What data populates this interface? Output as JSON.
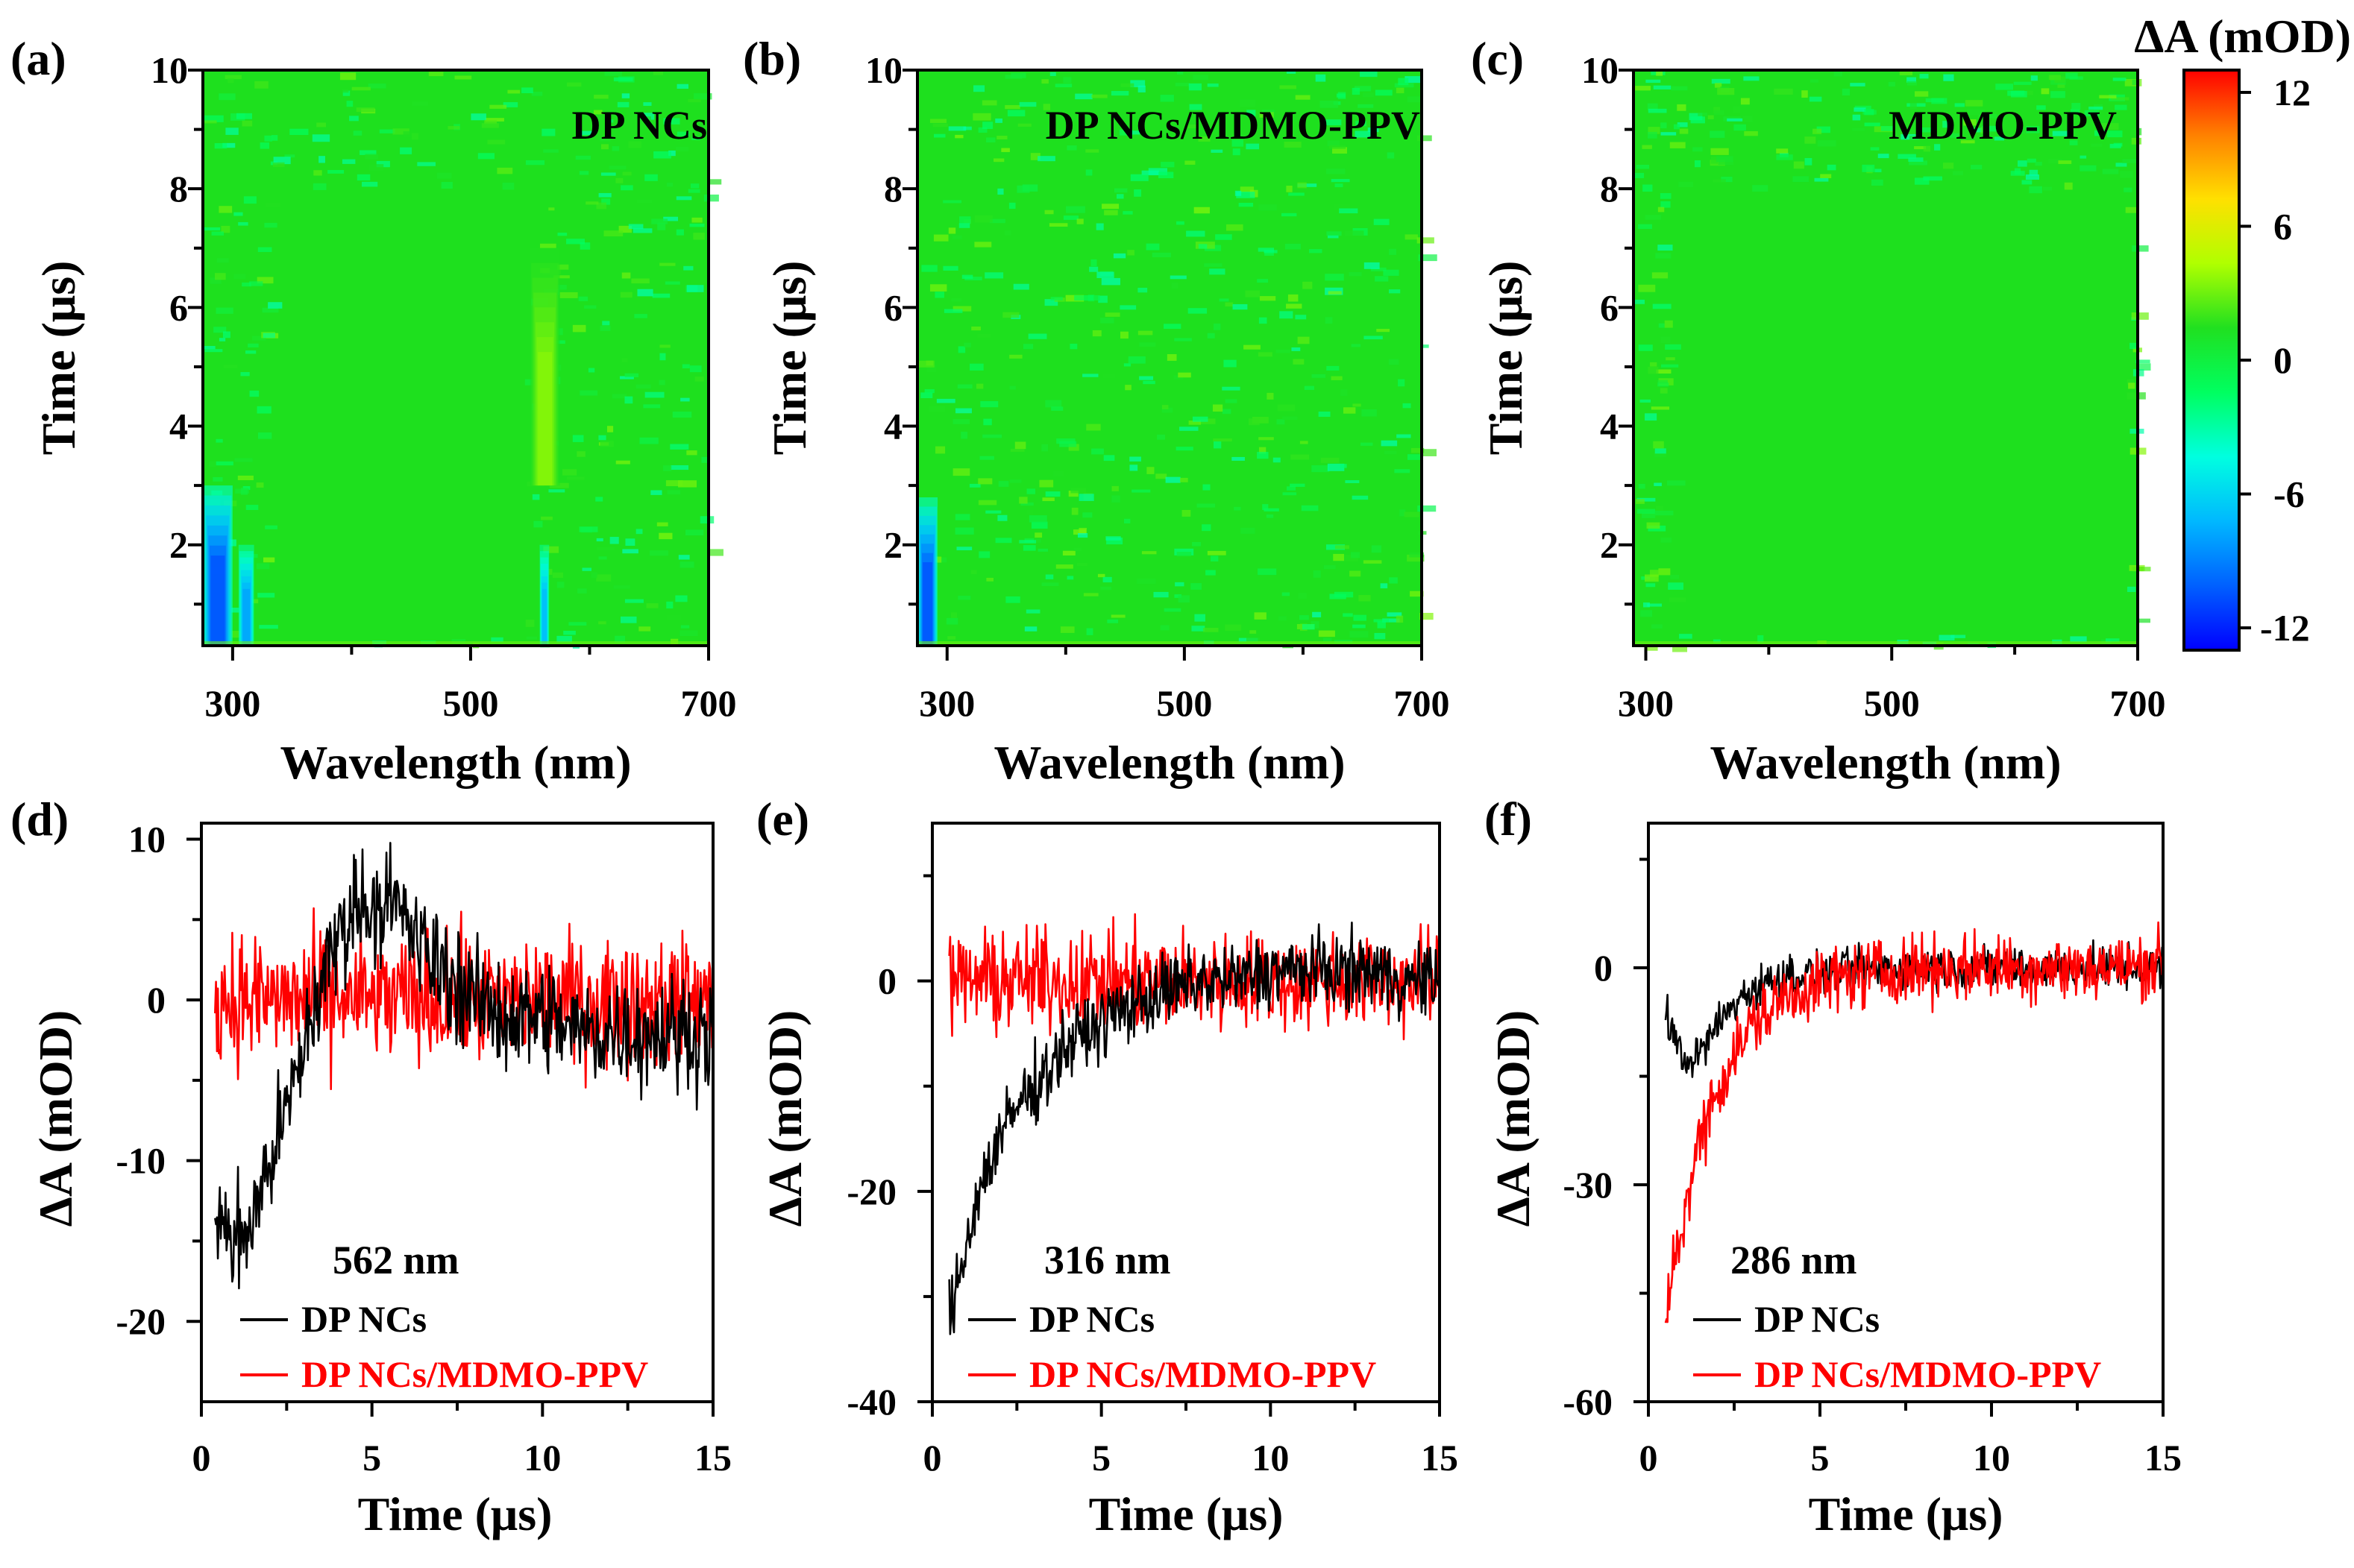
{
  "figure": {
    "description_labels": [
      "(a)",
      "(b)",
      "(c)",
      "(d)",
      "(e)",
      "(f)"
    ]
  },
  "colors": {
    "black_series": "#000000",
    "red_series": "#ff0000",
    "map_background": "#1ee01e"
  },
  "colorbar": {
    "title": "ΔA (mOD)",
    "min": -13,
    "max": 13,
    "ticks": [
      12,
      6,
      0,
      -6,
      -12
    ],
    "tick_labels": [
      "12",
      "6",
      "0",
      "-6",
      "-12"
    ],
    "colormap": [
      "#0000ff",
      "#0060ff",
      "#00b8ff",
      "#00ffe0",
      "#00ff60",
      "#20e020",
      "#b0ff00",
      "#ffe000",
      "#ff8000",
      "#ff0000"
    ]
  },
  "chart_data": [
    {
      "panel": "(a)",
      "type": "heatmap",
      "title": "DP NCs",
      "xlabel": "Wavelength (nm)",
      "ylabel": "Time (μs)",
      "xlim": [
        275,
        700
      ],
      "ylim": [
        0.3,
        10
      ],
      "xticks": [
        300,
        500,
        700
      ],
      "xtick_labels": [
        "300",
        "500",
        "700"
      ],
      "yticks": [
        2,
        4,
        6,
        8,
        10
      ],
      "ytick_labels": [
        "2",
        "4",
        "6",
        "8",
        "10"
      ],
      "features": [
        {
          "kind": "negative-band",
          "wavelength": [
            275,
            300
          ],
          "time": [
            0.3,
            3.0
          ],
          "dA": -12
        },
        {
          "kind": "negative-band",
          "wavelength": [
            305,
            318
          ],
          "time": [
            0.3,
            2.0
          ],
          "dA": -9
        },
        {
          "kind": "negative-band",
          "wavelength": [
            558,
            566
          ],
          "time": [
            0.3,
            2.0
          ],
          "dA": -8
        },
        {
          "kind": "positive-band",
          "wavelength": [
            550,
            575
          ],
          "time": [
            3.0,
            7.0
          ],
          "dA": 4
        }
      ]
    },
    {
      "panel": "(b)",
      "type": "heatmap",
      "title": "DP NCs/MDMO-PPV",
      "xlabel": "Wavelength (nm)",
      "ylabel": "Time (μs)",
      "xlim": [
        275,
        700
      ],
      "ylim": [
        0.3,
        10
      ],
      "xticks": [
        300,
        500,
        700
      ],
      "xtick_labels": [
        "300",
        "500",
        "700"
      ],
      "yticks": [
        2,
        4,
        6,
        8,
        10
      ],
      "ytick_labels": [
        "2",
        "4",
        "6",
        "8",
        "10"
      ],
      "features": [
        {
          "kind": "negative-band",
          "wavelength": [
            275,
            292
          ],
          "time": [
            0.3,
            2.8
          ],
          "dA": -12
        }
      ]
    },
    {
      "panel": "(c)",
      "type": "heatmap",
      "title": "MDMO-PPV",
      "xlabel": "Wavelength (nm)",
      "ylabel": "Time (μs)",
      "xlim": [
        290,
        700
      ],
      "ylim": [
        0.3,
        10
      ],
      "xticks": [
        300,
        500,
        700
      ],
      "xtick_labels": [
        "300",
        "500",
        "700"
      ],
      "yticks": [
        2,
        4,
        6,
        8,
        10
      ],
      "ytick_labels": [
        "2",
        "4",
        "6",
        "8",
        "10"
      ],
      "features": []
    },
    {
      "panel": "(d)",
      "type": "line",
      "annotation": "562 nm",
      "xlabel": "Time (μs)",
      "ylabel": "ΔA (mOD)",
      "xlim": [
        0,
        15
      ],
      "ylim": [
        -25,
        11
      ],
      "xticks": [
        0,
        5,
        10,
        15
      ],
      "xtick_labels": [
        "0",
        "5",
        "10",
        "15"
      ],
      "yticks": [
        -20,
        -10,
        0,
        10
      ],
      "ytick_labels": [
        "-20",
        "-10",
        "0",
        "10"
      ],
      "series": [
        {
          "name": "DP NCs",
          "color": "#000000",
          "x": [
            0.4,
            0.8,
            1.2,
            1.6,
            2.0,
            2.5,
            3.0,
            3.5,
            4.0,
            4.5,
            5.0,
            5.5,
            6.0,
            6.5,
            7.0,
            8.0,
            9.0,
            10.0,
            11.0,
            12.0,
            13.0,
            14.0,
            15.0
          ],
          "values": [
            -12,
            -15,
            -15,
            -13,
            -10,
            -7,
            -3,
            1,
            4,
            6,
            6,
            6,
            5,
            3,
            2,
            0,
            -1,
            -1,
            -2,
            -2,
            -2,
            -2,
            -2
          ],
          "noise": 3
        },
        {
          "name": "DP NCs/MDMO-PPV",
          "color": "#ff0000",
          "x": [
            0.4,
            15.0
          ],
          "values": [
            0,
            0
          ],
          "noise": 3.5
        }
      ]
    },
    {
      "panel": "(e)",
      "type": "line",
      "annotation": "316 nm",
      "xlabel": "Time (μs)",
      "ylabel": "ΔA (mOD)",
      "xlim": [
        0,
        15
      ],
      "ylim": [
        -40,
        15
      ],
      "xticks": [
        0,
        5,
        10,
        15
      ],
      "xtick_labels": [
        "0",
        "5",
        "10",
        "15"
      ],
      "yticks": [
        -40,
        -20,
        0
      ],
      "ytick_labels": [
        "-40",
        "-20",
        "0"
      ],
      "series": [
        {
          "name": "DP NCs",
          "color": "#000000",
          "x": [
            0.5,
            0.8,
            1.2,
            1.6,
            2.0,
            2.5,
            3.0,
            3.5,
            4.0,
            4.5,
            5.0,
            6.0,
            7.0,
            8.0,
            9.0,
            10.0,
            11.0,
            12.0,
            13.0,
            14.0,
            15.0
          ],
          "values": [
            -32,
            -28,
            -22,
            -18,
            -15,
            -12,
            -10,
            -8,
            -6,
            -5,
            -4,
            -2,
            -1,
            0,
            0,
            1,
            1,
            1,
            1,
            0,
            0
          ],
          "noise": 3
        },
        {
          "name": "DP NCs/MDMO-PPV",
          "color": "#ff0000",
          "x": [
            0.5,
            15.0
          ],
          "values": [
            0,
            0
          ],
          "noise": 4
        }
      ]
    },
    {
      "panel": "(f)",
      "type": "line",
      "annotation": "286 nm",
      "xlabel": "Time (μs)",
      "ylabel": "ΔA (mOD)",
      "xlim": [
        0,
        15
      ],
      "ylim": [
        -60,
        20
      ],
      "xticks": [
        0,
        5,
        10,
        15
      ],
      "xtick_labels": [
        "0",
        "5",
        "10",
        "15"
      ],
      "yticks": [
        -60,
        -30,
        0
      ],
      "ytick_labels": [
        "-60",
        "-30",
        "0"
      ],
      "series": [
        {
          "name": "DP NCs",
          "color": "#000000",
          "x": [
            0.5,
            0.8,
            1.0,
            1.5,
            2.0,
            2.5,
            3.0,
            3.5,
            4.0,
            5.0,
            6.0,
            8.0,
            10.0,
            12.0,
            14.0,
            15.0
          ],
          "values": [
            -6,
            -10,
            -13,
            -12,
            -8,
            -5,
            -3,
            -2,
            -1,
            -1,
            0,
            0,
            0,
            0,
            0,
            0
          ],
          "noise": 2.5
        },
        {
          "name": "DP NCs/MDMO-PPV",
          "color": "#ff0000",
          "x": [
            0.5,
            0.7,
            1.0,
            1.3,
            1.6,
            2.0,
            2.5,
            3.0,
            3.5,
            4.0,
            5.0,
            6.0,
            8.0,
            10.0,
            12.0,
            14.0,
            15.0
          ],
          "values": [
            -50,
            -42,
            -35,
            -28,
            -22,
            -17,
            -12,
            -8,
            -6,
            -4,
            -2,
            -1,
            0,
            0,
            0,
            0,
            1
          ],
          "noise": 4
        }
      ]
    }
  ]
}
